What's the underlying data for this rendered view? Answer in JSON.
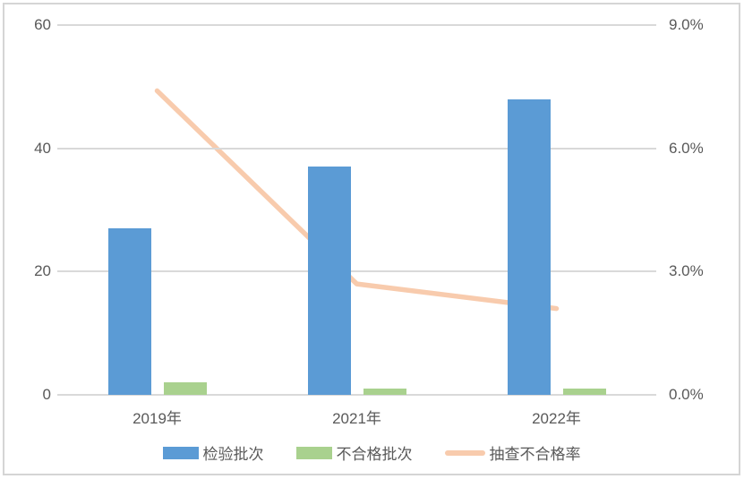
{
  "chart_data": {
    "type": "bar",
    "subtype": "combo-bar-line-dual-axis",
    "categories": [
      "2019年",
      "2021年",
      "2022年"
    ],
    "series": [
      {
        "name": "检验批次",
        "chart_type": "bar",
        "axis": "left",
        "color": "#5B9BD5",
        "values": [
          27,
          37,
          48
        ]
      },
      {
        "name": "不合格批次",
        "chart_type": "bar",
        "axis": "left",
        "color": "#A9D18E",
        "values": [
          2,
          1,
          1
        ]
      },
      {
        "name": "抽查不合格率",
        "chart_type": "line",
        "axis": "right",
        "color": "#F8CBAD",
        "values": [
          7.4,
          2.7,
          2.1
        ],
        "unit": "%"
      }
    ],
    "left_axis": {
      "min": 0,
      "max": 60,
      "ticks": [
        "0",
        "20",
        "40",
        "60"
      ]
    },
    "right_axis": {
      "min": 0,
      "max": 9,
      "ticks": [
        "0.0%",
        "3.0%",
        "6.0%",
        "9.0%"
      ]
    },
    "grid": true,
    "legend_position": "bottom"
  },
  "styles": {
    "text_color": "#595959",
    "grid_color": "#D9D9D9",
    "frame_border_color": "#D5D5D5",
    "background": "#FFFFFF"
  }
}
